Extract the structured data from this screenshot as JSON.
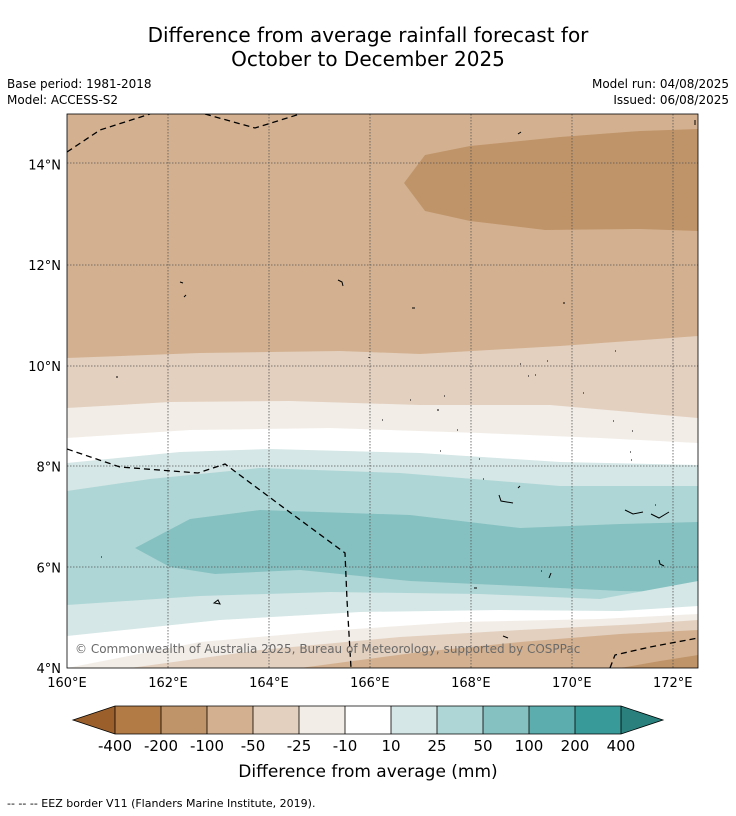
{
  "title_line1": "Difference from average rainfall forecast for",
  "title_line2": "October to December 2025",
  "base_period": "Base period: 1981-2018",
  "model": "Model: ACCESS-S2",
  "model_run": "Model run: 04/08/2025",
  "issued": "Issued: 06/08/2025",
  "copyright": "© Commonwealth of Australia 2025, Bureau of Meteorology, supported by COSPPac",
  "colorbar_label": "Difference from average (mm)",
  "footnote": "--  --  -- EEZ border V11 (Flanders Marine Institute, 2019).",
  "map_data": {
    "lon_range": [
      160,
      172.5
    ],
    "lat_range": [
      4,
      15
    ],
    "lon_ticks": [
      160,
      162,
      164,
      166,
      168,
      170,
      172
    ],
    "lat_ticks": [
      4,
      6,
      8,
      10,
      12,
      14
    ],
    "lon_tick_labels": [
      "160°E",
      "162°E",
      "164°E",
      "166°E",
      "168°E",
      "170°E",
      "172°E"
    ],
    "lat_tick_labels": [
      "4°N",
      "6°N",
      "8°N",
      "10°N",
      "12°N",
      "14°N"
    ],
    "gridlines": true,
    "colorbar": {
      "tick_labels": [
        "-400",
        "-200",
        "-100",
        "-50",
        "-25",
        "-10",
        "10",
        "25",
        "50",
        "100",
        "200",
        "400"
      ],
      "colors": [
        "#9b5f2c",
        "#b27b45",
        "#c09469",
        "#d3b190",
        "#e3d0bf",
        "#f2ede7",
        "#ffffff",
        "#d5e7e6",
        "#aed6d6",
        "#86c1c1",
        "#5baead",
        "#399b99",
        "#2a807d"
      ],
      "extend": "both"
    }
  }
}
